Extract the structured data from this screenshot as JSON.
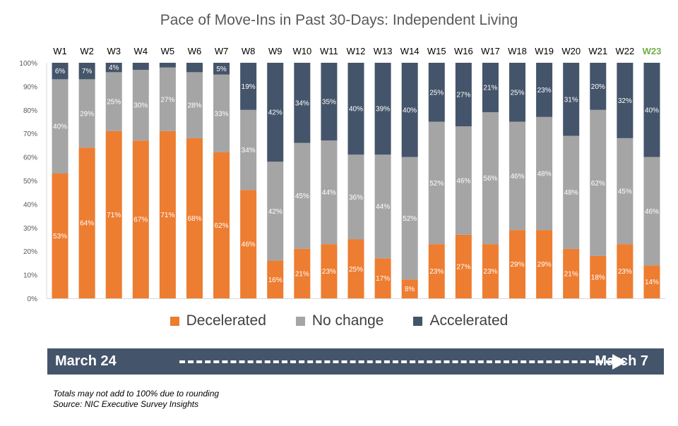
{
  "chart_data": {
    "type": "bar",
    "stacked": true,
    "percent_stacked": true,
    "title": "Pace of Move-Ins in Past 30-Days: Independent Living",
    "categories": [
      "W1",
      "W2",
      "W3",
      "W4",
      "W5",
      "W6",
      "W7",
      "W8",
      "W9",
      "W10",
      "W11",
      "W12",
      "W13",
      "W14",
      "W15",
      "W16",
      "W17",
      "W18",
      "W19",
      "W20",
      "W21",
      "W22",
      "W23"
    ],
    "highlight_category": "W23",
    "highlight_color": "#70ad47",
    "series": [
      {
        "name": "Decelerated",
        "color": "#ed7d31",
        "values": [
          53,
          64,
          71,
          67,
          71,
          68,
          62,
          46,
          16,
          21,
          23,
          25,
          17,
          8,
          23,
          27,
          23,
          29,
          29,
          21,
          18,
          23,
          14
        ]
      },
      {
        "name": "No change",
        "color": "#a5a5a5",
        "values": [
          40,
          29,
          25,
          30,
          27,
          28,
          33,
          34,
          42,
          45,
          44,
          36,
          44,
          52,
          52,
          46,
          56,
          46,
          48,
          48,
          62,
          45,
          46
        ]
      },
      {
        "name": "Accelerated",
        "color": "#44546a",
        "values": [
          6,
          7,
          4,
          null,
          null,
          null,
          5,
          19,
          42,
          34,
          35,
          40,
          39,
          40,
          25,
          27,
          21,
          25,
          23,
          31,
          20,
          32,
          40
        ]
      }
    ],
    "yticks": [
      "0%",
      "10%",
      "20%",
      "30%",
      "40%",
      "50%",
      "60%",
      "70%",
      "80%",
      "90%",
      "100%"
    ],
    "ylim": [
      0,
      100
    ],
    "legend_position": "bottom",
    "grid": false
  },
  "timeline": {
    "start_label": "March 24",
    "end_label": "March 7"
  },
  "footnotes": {
    "line1": "Totals may not add to 100% due to rounding",
    "line2": "Source: NIC Executive Survey Insights"
  }
}
